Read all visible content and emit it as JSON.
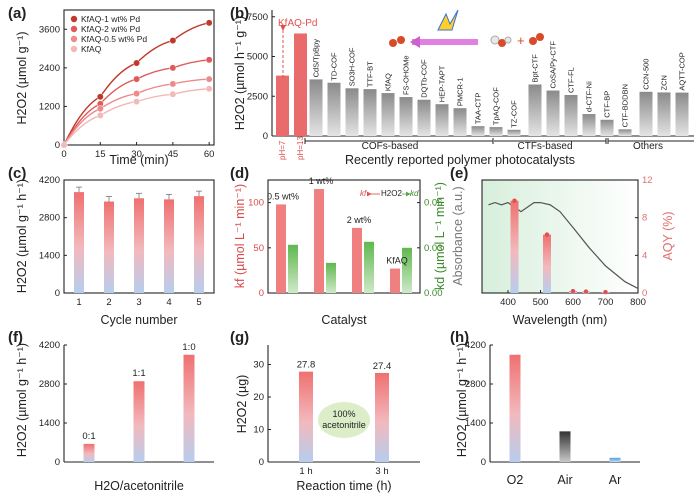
{
  "chart_data": [
    {
      "panel": "(a)",
      "type": "line",
      "xlabel": "Time  (min)",
      "ylabel": "H2O2 (µmol g⁻¹)",
      "x_ticks": [
        "0",
        "15",
        "30",
        "45",
        "60"
      ],
      "y_ticks": [
        "0",
        "1200",
        "2400",
        "3600"
      ],
      "xlim": [
        0,
        62
      ],
      "ylim": [
        0,
        4200
      ],
      "x": [
        0,
        15,
        30,
        45,
        60
      ],
      "series": [
        {
          "name": "KfAQ-1 wt% Pd",
          "color": "#c0392b",
          "values": [
            0,
            1500,
            2550,
            3250,
            3800
          ]
        },
        {
          "name": "KfAQ-2 wt% Pd",
          "color": "#e05a5a",
          "values": [
            0,
            1280,
            2050,
            2400,
            2650
          ]
        },
        {
          "name": "KfAQ-0.5 wt% Pd",
          "color": "#ec8b8b",
          "values": [
            0,
            1130,
            1600,
            1900,
            2050
          ]
        },
        {
          "name": "KfAQ",
          "color": "#f3b8b8",
          "values": [
            0,
            920,
            1350,
            1580,
            1750
          ]
        }
      ]
    },
    {
      "panel": "(b)",
      "type": "bar",
      "ylabel": "H2O2 (µmol h⁻¹ g⁻¹)",
      "y_ticks": [
        "0",
        "2500",
        "5000",
        "7500"
      ],
      "ylim": [
        0,
        7800
      ],
      "annotation": "KfAQ-Pd",
      "ph_labels": [
        "pH=7",
        "pH=13"
      ],
      "categories": [
        "pH=7",
        "pH=13",
        "CdS/TpBpy",
        "TD-COF",
        "SO3H-COF",
        "TTF-BT",
        "KfAQ",
        "FS-OHOMe",
        "DQTb-COF",
        "HEP-TAPT",
        "PMCR-1",
        "TAA-CTP",
        "TpAQ-COF",
        "TZ-COF",
        "Bpt-CTF",
        "CoSA/Py-CTF",
        "CTF-FL",
        "d-CTF-Ni",
        "CTF-BP",
        "CTF-BDDBN",
        "CCN-500",
        "ZCN",
        "AQTT-COP"
      ],
      "values": [
        3800,
        6450,
        3560,
        3350,
        3000,
        2950,
        2700,
        2450,
        2280,
        2000,
        1750,
        620,
        560,
        390,
        3240,
        2860,
        2580,
        1380,
        1020,
        420,
        2780,
        2740,
        2730
      ],
      "groups": [
        {
          "label": "COFs-based"
        },
        {
          "label": "CTFs-based"
        },
        {
          "label": "Others"
        }
      ],
      "xlabel": "Recently reported polymer photocatalysts"
    },
    {
      "panel": "(c)",
      "type": "bar",
      "xlabel": "Cycle number",
      "ylabel": "H2O2 (µmol g⁻¹ h⁻¹)",
      "y_ticks": [
        "0",
        "1400",
        "2800",
        "4200"
      ],
      "ylim": [
        0,
        4200
      ],
      "categories": [
        "1",
        "2",
        "3",
        "4",
        "5"
      ],
      "values": [
        3750,
        3400,
        3520,
        3480,
        3600
      ]
    },
    {
      "panel": "(d)",
      "type": "bar",
      "xlabel": "Catalyst",
      "ylabel": "kf (µmol L⁻¹ min⁻¹)",
      "ylabel_right": "kd (µmol L⁻¹ min⁻¹)",
      "y_ticks": [
        "0",
        "50",
        "100"
      ],
      "y_ticks_right": [
        "0.00",
        "0.03",
        "0.06"
      ],
      "ylim": [
        0,
        125
      ],
      "ylim_right": [
        0,
        0.075
      ],
      "categories": [
        "0.5 wt%",
        "1 wt%",
        "2 wt%",
        "KfAQ"
      ],
      "series": [
        {
          "name": "kf",
          "color": "#f08080",
          "values": [
            98,
            115,
            72,
            27
          ]
        },
        {
          "name": "kd",
          "color": "#6bbf59",
          "values": [
            0.032,
            0.02,
            0.034,
            0.03
          ]
        }
      ],
      "legend_parts": [
        "kf",
        "H2O2",
        "kd"
      ]
    },
    {
      "panel": "(e)",
      "type": "line",
      "xlabel": "Wavelength (nm)",
      "ylabel": "Absorbance (a.u.)",
      "ylabel_right": "AQY (%)",
      "x_ticks": [
        "400",
        "500",
        "600",
        "700",
        "800"
      ],
      "y_ticks_right": [
        "0",
        "4",
        "8",
        "12"
      ],
      "xlim": [
        320,
        800
      ],
      "ylim_right": [
        0,
        12
      ],
      "absorbance_x": [
        340,
        360,
        380,
        400,
        420,
        440,
        460,
        480,
        500,
        530,
        560,
        600,
        650,
        700,
        760,
        800
      ],
      "absorbance_y": [
        0.78,
        0.8,
        0.78,
        0.8,
        0.76,
        0.72,
        0.76,
        0.8,
        0.8,
        0.78,
        0.72,
        0.58,
        0.4,
        0.24,
        0.1,
        0.04
      ],
      "aqy_x": [
        420,
        520,
        600,
        640,
        700
      ],
      "aqy_values": [
        9.8,
        6.2,
        0.2,
        0.15,
        0.1
      ]
    },
    {
      "panel": "(f)",
      "type": "bar",
      "xlabel": "H2O/acetonitrile",
      "ylabel": "H2O2 (µmol g⁻¹ h⁻¹)",
      "y_ticks": [
        "0",
        "1400",
        "2800",
        "4200"
      ],
      "ylim": [
        0,
        4200
      ],
      "categories": [
        "0:1",
        "1:1",
        "1:0"
      ],
      "values": [
        650,
        2900,
        3850
      ]
    },
    {
      "panel": "(g)",
      "type": "bar",
      "xlabel": "Reaction time (h)",
      "ylabel": "H2O2 (µg)",
      "y_ticks": [
        "0",
        "10",
        "20",
        "30"
      ],
      "ylim": [
        0,
        36
      ],
      "categories": [
        "1 h",
        "3 h"
      ],
      "values": [
        27.8,
        27.4
      ],
      "data_labels": [
        "27.8",
        "27.4"
      ],
      "annotation": "100%\nacetonitrile"
    },
    {
      "panel": "(h)",
      "type": "bar",
      "ylabel": "H2O2 (µmol g⁻¹ h⁻¹)",
      "y_ticks": [
        "0",
        "1400",
        "2800",
        "4200"
      ],
      "ylim": [
        0,
        4200
      ],
      "categories": [
        "O2",
        "Air",
        "Ar"
      ],
      "values": [
        3850,
        1100,
        150
      ],
      "colors": [
        "#f07c7c",
        "#777777",
        "#5aa9e6"
      ]
    }
  ],
  "labels": {
    "a": "(a)",
    "b": "(b)",
    "c": "(c)",
    "d": "(d)",
    "e": "(e)",
    "f": "(f)",
    "g": "(g)",
    "h": "(h)"
  }
}
